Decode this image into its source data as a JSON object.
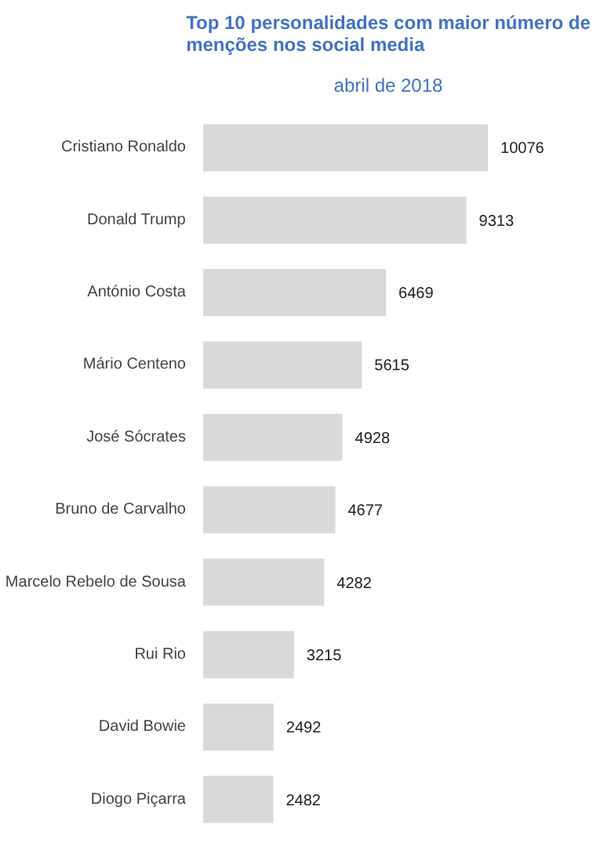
{
  "chart_data": {
    "type": "bar",
    "orientation": "horizontal",
    "title": "Top 10 personalidades com maior número de menções nos social media",
    "subtitle": "abril de 2018",
    "categories": [
      "Cristiano Ronaldo",
      "Donald Trump",
      "António Costa",
      "Mário Centeno",
      "José Sócrates",
      "Bruno de Carvalho",
      "Marcelo Rebelo de Sousa",
      "Rui Rio",
      "David Bowie",
      "Diogo Piçarra"
    ],
    "values": [
      10076,
      9313,
      6469,
      5615,
      4928,
      4677,
      4282,
      3215,
      2492,
      2482
    ],
    "color": "#d9d9d9",
    "data_labels": true,
    "grid": false,
    "tick_labels": "y"
  }
}
